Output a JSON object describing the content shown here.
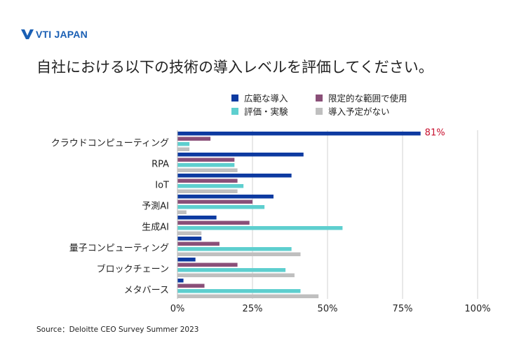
{
  "brand": {
    "logo_text": "VTI JAPAN"
  },
  "title": "自社における以下の技術の導入レベルを評価してください。",
  "source": "Source：Deloitte CEO Survey Summer 2023",
  "colors": {
    "widely": "#0d3aa1",
    "limited": "#8a4f78",
    "evaluating": "#5ecfcf",
    "none": "#bfbfbf",
    "callout": "#c8102e",
    "grid": "#d0d0d0"
  },
  "chart_data": {
    "type": "bar",
    "orientation": "horizontal",
    "categories": [
      "クラウドコンピューティング",
      "RPA",
      "IoT",
      "予測AI",
      "生成AI",
      "量子コンピューティング",
      "ブロックチェーン",
      "メタバース"
    ],
    "series": [
      {
        "name": "広範な導入",
        "values": [
          81,
          42,
          38,
          32,
          13,
          8,
          6,
          2
        ]
      },
      {
        "name": "限定的な範囲で使用",
        "values": [
          11,
          19,
          20,
          25,
          24,
          14,
          20,
          9
        ]
      },
      {
        "name": "評価・実験",
        "values": [
          4,
          19,
          22,
          29,
          55,
          38,
          36,
          41
        ]
      },
      {
        "name": "導入予定がない",
        "values": [
          4,
          20,
          20,
          3,
          8,
          41,
          39,
          47
        ]
      }
    ],
    "xlim": [
      0,
      100
    ],
    "xticks": [
      0,
      25,
      50,
      75,
      100
    ],
    "xtick_labels": [
      "0%",
      "25%",
      "50%",
      "75%",
      "100%"
    ],
    "annotation": "81%",
    "legend_position": "top"
  }
}
